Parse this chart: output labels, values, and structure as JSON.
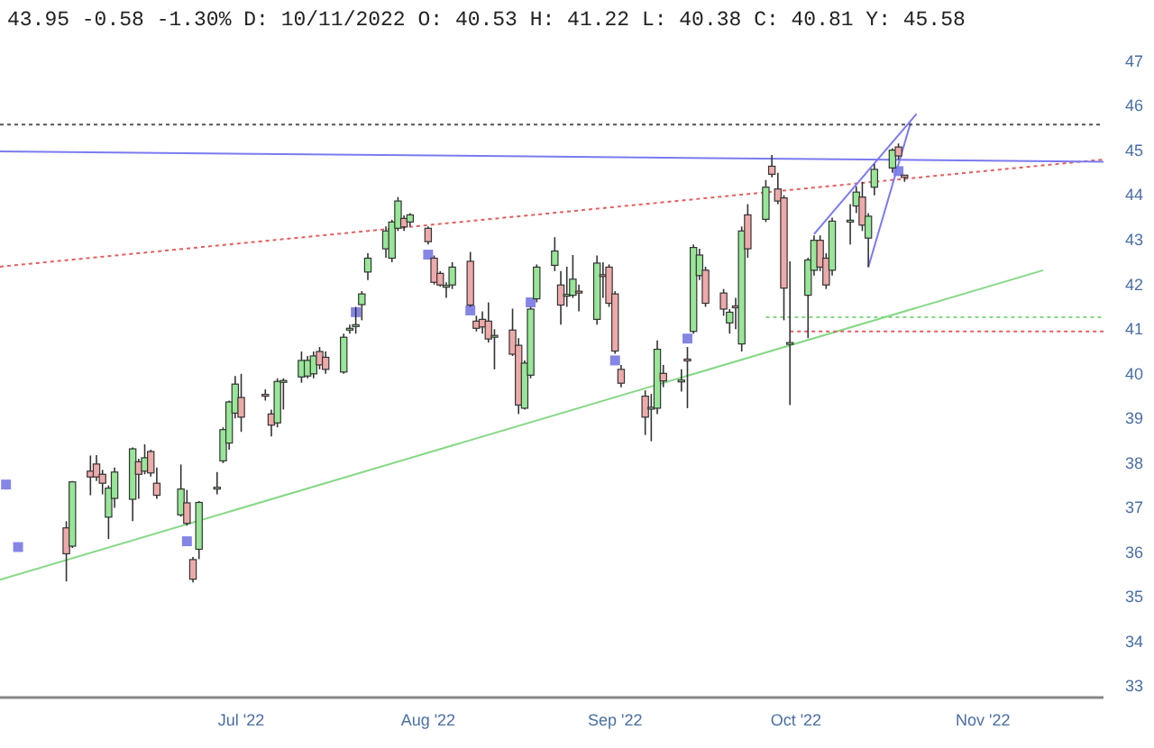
{
  "chart_data": {
    "type": "candlestick",
    "title": "43.95 -0.58 -1.30% D: 10/11/2022 O: 40.53 H: 41.22 L: 40.38 C: 40.81 Y: 45.58",
    "x": [
      "2022-06-02",
      "2022-06-03",
      "2022-06-06",
      "2022-06-07",
      "2022-06-08",
      "2022-06-09",
      "2022-06-10",
      "2022-06-13",
      "2022-06-14",
      "2022-06-15",
      "2022-06-16",
      "2022-06-17",
      "2022-06-21",
      "2022-06-22",
      "2022-06-23",
      "2022-06-24",
      "2022-06-27",
      "2022-06-28",
      "2022-06-29",
      "2022-06-30",
      "2022-07-01",
      "2022-07-05",
      "2022-07-06",
      "2022-07-07",
      "2022-07-08",
      "2022-07-11",
      "2022-07-12",
      "2022-07-13",
      "2022-07-14",
      "2022-07-15",
      "2022-07-18",
      "2022-07-19",
      "2022-07-20",
      "2022-07-21",
      "2022-07-22",
      "2022-07-25",
      "2022-07-26",
      "2022-07-27",
      "2022-07-28",
      "2022-07-29",
      "2022-08-01",
      "2022-08-02",
      "2022-08-03",
      "2022-08-04",
      "2022-08-05",
      "2022-08-08",
      "2022-08-09",
      "2022-08-10",
      "2022-08-11",
      "2022-08-12",
      "2022-08-15",
      "2022-08-16",
      "2022-08-17",
      "2022-08-18",
      "2022-08-19",
      "2022-08-22",
      "2022-08-23",
      "2022-08-24",
      "2022-08-25",
      "2022-08-26",
      "2022-08-29",
      "2022-08-30",
      "2022-08-31",
      "2022-09-01",
      "2022-09-02",
      "2022-09-06",
      "2022-09-07",
      "2022-09-08",
      "2022-09-09",
      "2022-09-12",
      "2022-09-13",
      "2022-09-14",
      "2022-09-15",
      "2022-09-16",
      "2022-09-19",
      "2022-09-20",
      "2022-09-21",
      "2022-09-22",
      "2022-09-23",
      "2022-09-26",
      "2022-09-27",
      "2022-09-28",
      "2022-09-29",
      "2022-09-30",
      "2022-10-03",
      "2022-10-04",
      "2022-10-05",
      "2022-10-06",
      "2022-10-07",
      "2022-10-10",
      "2022-10-11",
      "2022-10-12",
      "2022-10-13",
      "2022-10-14",
      "2022-10-17",
      "2022-10-18",
      "2022-10-19"
    ],
    "ohlc": [
      [
        36.55,
        36.7,
        35.35,
        35.97
      ],
      [
        36.14,
        37.6,
        36.1,
        37.58
      ],
      [
        37.82,
        38.17,
        37.28,
        37.69
      ],
      [
        37.98,
        38.18,
        37.6,
        37.69
      ],
      [
        37.75,
        37.85,
        37.3,
        37.55
      ],
      [
        36.79,
        37.5,
        36.3,
        37.44
      ],
      [
        37.21,
        37.9,
        37.0,
        37.8
      ],
      [
        37.19,
        38.35,
        36.7,
        38.32
      ],
      [
        38.03,
        38.1,
        37.2,
        37.75
      ],
      [
        37.82,
        38.42,
        37.75,
        38.12
      ],
      [
        38.26,
        38.3,
        37.7,
        37.78
      ],
      [
        37.55,
        37.9,
        37.2,
        37.28
      ],
      [
        36.84,
        37.97,
        36.8,
        37.42
      ],
      [
        37.11,
        37.4,
        36.6,
        36.65
      ],
      [
        35.84,
        35.9,
        35.33,
        35.4
      ],
      [
        36.07,
        37.15,
        35.85,
        37.12
      ],
      [
        37.44,
        37.8,
        37.3,
        37.46
      ],
      [
        38.05,
        38.8,
        38.0,
        38.75
      ],
      [
        38.45,
        39.4,
        38.3,
        39.37
      ],
      [
        39.12,
        39.95,
        39.0,
        39.77
      ],
      [
        39.47,
        40.0,
        38.7,
        39.03
      ],
      [
        39.54,
        39.65,
        39.4,
        39.52
      ],
      [
        39.1,
        39.2,
        38.6,
        38.85
      ],
      [
        38.9,
        39.9,
        38.8,
        39.83
      ],
      [
        39.83,
        39.9,
        39.2,
        39.85
      ],
      [
        39.93,
        40.5,
        39.8,
        40.3
      ],
      [
        39.95,
        40.4,
        39.9,
        40.3
      ],
      [
        40.0,
        40.5,
        39.9,
        40.4
      ],
      [
        40.5,
        40.6,
        40.1,
        40.2
      ],
      [
        40.37,
        40.5,
        40.0,
        40.1
      ],
      [
        40.04,
        40.9,
        40.0,
        40.82
      ],
      [
        41.0,
        41.1,
        40.9,
        41.02
      ],
      [
        41.08,
        41.5,
        40.9,
        41.1
      ],
      [
        41.55,
        41.85,
        41.2,
        41.79
      ],
      [
        42.28,
        42.7,
        42.1,
        42.59
      ],
      [
        42.8,
        43.3,
        42.6,
        43.2
      ],
      [
        42.59,
        43.45,
        42.5,
        43.4
      ],
      [
        43.26,
        43.96,
        43.2,
        43.87
      ],
      [
        43.48,
        43.55,
        43.2,
        43.29
      ],
      [
        43.4,
        43.6,
        43.3,
        43.56
      ],
      [
        43.26,
        43.3,
        42.9,
        42.96
      ],
      [
        42.59,
        42.65,
        42.0,
        42.05
      ],
      [
        42.25,
        42.3,
        41.95,
        41.99
      ],
      [
        41.96,
        42.05,
        41.7,
        41.98
      ],
      [
        41.99,
        42.5,
        41.9,
        42.39
      ],
      [
        42.52,
        42.73,
        41.5,
        41.54
      ],
      [
        41.18,
        41.3,
        40.95,
        41.02
      ],
      [
        41.22,
        41.4,
        40.9,
        41.05
      ],
      [
        41.18,
        41.6,
        40.7,
        40.78
      ],
      [
        40.84,
        41.0,
        40.1,
        40.86
      ],
      [
        40.98,
        41.46,
        40.4,
        40.44
      ],
      [
        40.64,
        40.8,
        39.1,
        39.3
      ],
      [
        39.23,
        40.3,
        39.2,
        40.24
      ],
      [
        39.97,
        41.5,
        39.9,
        41.45
      ],
      [
        41.68,
        42.45,
        41.6,
        42.39
      ],
      [
        42.43,
        43.06,
        42.3,
        42.75
      ],
      [
        41.99,
        42.3,
        41.1,
        41.54
      ],
      [
        41.76,
        42.4,
        41.5,
        41.78
      ],
      [
        41.76,
        42.66,
        41.7,
        42.12
      ],
      [
        41.85,
        42.0,
        41.4,
        41.83
      ],
      [
        41.22,
        42.65,
        41.1,
        42.48
      ],
      [
        42.22,
        42.5,
        41.7,
        42.2
      ],
      [
        42.39,
        42.45,
        41.5,
        41.58
      ],
      [
        41.79,
        41.85,
        40.45,
        40.51
      ],
      [
        40.1,
        40.2,
        39.7,
        39.79
      ],
      [
        39.5,
        39.63,
        38.63,
        39.03
      ],
      [
        39.23,
        39.55,
        38.49,
        39.25
      ],
      [
        39.23,
        40.75,
        39.1,
        40.55
      ],
      [
        40.01,
        40.2,
        39.7,
        39.84
      ],
      [
        39.84,
        40.1,
        39.6,
        39.86
      ],
      [
        40.33,
        40.6,
        39.23,
        40.31
      ],
      [
        40.95,
        42.9,
        40.9,
        42.83
      ],
      [
        42.2,
        42.8,
        42.1,
        42.66
      ],
      [
        42.32,
        42.4,
        41.5,
        41.58
      ],
      [
        41.81,
        41.9,
        41.3,
        41.45
      ],
      [
        41.14,
        41.45,
        40.9,
        41.38
      ],
      [
        41.52,
        41.7,
        41.0,
        41.5
      ],
      [
        40.67,
        43.3,
        40.5,
        43.2
      ],
      [
        43.56,
        43.8,
        42.6,
        42.8
      ],
      [
        43.46,
        44.34,
        43.4,
        44.18
      ],
      [
        44.65,
        44.9,
        44.4,
        44.47
      ],
      [
        44.14,
        44.5,
        43.8,
        43.87
      ],
      [
        43.94,
        44.0,
        41.2,
        41.92
      ],
      [
        40.68,
        42.52,
        39.3,
        40.7
      ],
      [
        41.76,
        42.6,
        40.8,
        42.55
      ],
      [
        42.32,
        43.1,
        42.2,
        42.99
      ],
      [
        42.99,
        43.1,
        42.3,
        42.39
      ],
      [
        42.59,
        42.7,
        41.9,
        41.99
      ],
      [
        42.32,
        43.5,
        42.2,
        43.42
      ],
      [
        43.42,
        43.8,
        42.9,
        43.44
      ],
      [
        43.76,
        44.2,
        43.6,
        44.07
      ],
      [
        43.96,
        44.3,
        43.2,
        43.33
      ],
      [
        43.04,
        43.6,
        42.39,
        43.53
      ],
      [
        44.18,
        44.7,
        44.0,
        44.58
      ],
      [
        44.61,
        45.05,
        44.5,
        45.01
      ],
      [
        45.08,
        45.16,
        44.8,
        44.88
      ],
      [
        44.45,
        44.45,
        44.3,
        44.4
      ]
    ],
    "colors": [
      "#eeaaaa",
      "#98e698",
      "#eeaaaa",
      "#eeaaaa",
      "#eeaaaa",
      "#98e698",
      "#98e698",
      "#98e698",
      "#eeaaaa",
      "#98e698",
      "#eeaaaa",
      "#eeaaaa",
      "#98e698",
      "#eeaaaa",
      "#eeaaaa",
      "#98e698",
      "#98e698",
      "#98e698",
      "#98e698",
      "#98e698",
      "#eeaaaa",
      "#eeaaaa",
      "#eeaaaa",
      "#98e698",
      "#98e698",
      "#98e698",
      "#98e698",
      "#98e698",
      "#eeaaaa",
      "#eeaaaa",
      "#98e698",
      "#98e698",
      "#98e698",
      "#98e698",
      "#98e698",
      "#98e698",
      "#98e698",
      "#98e698",
      "#eeaaaa",
      "#98e698",
      "#eeaaaa",
      "#eeaaaa",
      "#eeaaaa",
      "#98e698",
      "#98e698",
      "#eeaaaa",
      "#eeaaaa",
      "#eeaaaa",
      "#eeaaaa",
      "#98e698",
      "#eeaaaa",
      "#eeaaaa",
      "#98e698",
      "#98e698",
      "#98e698",
      "#98e698",
      "#eeaaaa",
      "#98e698",
      "#98e698",
      "#eeaaaa",
      "#98e698",
      "#eeaaaa",
      "#eeaaaa",
      "#eeaaaa",
      "#eeaaaa",
      "#eeaaaa",
      "#98e698",
      "#98e698",
      "#eeaaaa",
      "#98e698",
      "#eeaaaa",
      "#98e698",
      "#98e698",
      "#eeaaaa",
      "#eeaaaa",
      "#98e698",
      "#eeaaaa",
      "#98e698",
      "#eeaaaa",
      "#98e698",
      "#eeaaaa",
      "#eeaaaa",
      "#eeaaaa",
      "#98e698",
      "#98e698",
      "#98e698",
      "#eeaaaa",
      "#eeaaaa",
      "#98e698",
      "#98e698",
      "#98e698",
      "#eeaaaa",
      "#98e698",
      "#98e698",
      "#98e698",
      "#eeaaaa",
      "#eeaaaa"
    ],
    "series": [
      {
        "type": "scatter",
        "marker": "square",
        "color": "#8585e6",
        "x": [
          "2022-05-23",
          "2022-05-25",
          "2022-06-22",
          "2022-07-20",
          "2022-08-01",
          "2022-08-08",
          "2022-08-18",
          "2022-09-01",
          "2022-09-13",
          "2022-10-18"
        ],
        "values": [
          37.52,
          36.12,
          36.25,
          41.38,
          42.67,
          41.42,
          41.6,
          40.3,
          40.79,
          44.54
        ]
      },
      {
        "type": "line",
        "line_style": "solid",
        "color": "#86d886",
        "x": [
          "2022-05-22",
          "2022-11-11"
        ],
        "values": [
          35.39,
          42.32
        ]
      },
      {
        "type": "line",
        "line_style": "dotted",
        "color": "#e06060",
        "x": [
          "2022-05-22",
          "2022-11-21"
        ],
        "values": [
          42.4,
          44.8
        ]
      },
      {
        "type": "line",
        "line_style": "solid",
        "color": "#7b7bf0",
        "x": [
          "2022-05-22",
          "2022-11-21"
        ],
        "values": [
          44.98,
          44.75
        ]
      },
      {
        "type": "line",
        "line_style": "solid",
        "color": "#7b7bf0",
        "x": [
          "2022-10-04",
          "2022-10-21"
        ],
        "values": [
          43.13,
          45.82
        ]
      },
      {
        "type": "line",
        "line_style": "solid",
        "color": "#7b7bf0",
        "x": [
          "2022-10-13",
          "2022-10-20"
        ],
        "values": [
          42.39,
          45.62
        ]
      },
      {
        "type": "line",
        "line_style": "dotted",
        "color": "#555555",
        "x": [
          "2022-05-22",
          "2022-11-21"
        ],
        "values": [
          45.58,
          45.58
        ]
      },
      {
        "type": "line",
        "line_style": "dotted",
        "color": "#86d886",
        "x": [
          "2022-09-26",
          "2022-11-21"
        ],
        "values": [
          41.27,
          41.27
        ]
      },
      {
        "type": "line",
        "line_style": "dotted",
        "color": "#e06060",
        "x": [
          "2022-09-30",
          "2022-11-21"
        ],
        "values": [
          40.95,
          40.95
        ]
      }
    ],
    "xlim": [
      "2022-05-22",
      "2022-11-21"
    ],
    "xticks": [
      {
        "value": "2022-07-01",
        "label": "Jul '22"
      },
      {
        "value": "2022-08-01",
        "label": "Aug '22"
      },
      {
        "value": "2022-09-01",
        "label": "Sep '22"
      },
      {
        "value": "2022-10-01",
        "label": "Oct '22"
      },
      {
        "value": "2022-11-01",
        "label": "Nov '22"
      }
    ],
    "ylim": [
      32.75,
      47
    ],
    "yticks": [
      33,
      34,
      35,
      36,
      37,
      38,
      39,
      40,
      41,
      42,
      43,
      44,
      45,
      46,
      47
    ],
    "grid": false
  }
}
